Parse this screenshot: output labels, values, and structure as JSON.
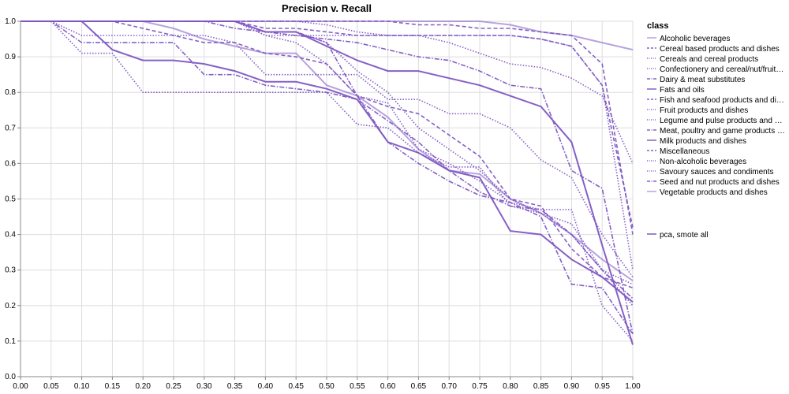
{
  "chart_data": {
    "type": "line",
    "title": "Precision v. Recall",
    "xlabel": "",
    "ylabel": "",
    "xlim": [
      0,
      1
    ],
    "ylim": [
      0,
      1
    ],
    "x_ticks": [
      "0.00",
      "0.05",
      "0.10",
      "0.15",
      "0.20",
      "0.25",
      "0.30",
      "0.35",
      "0.40",
      "0.45",
      "0.50",
      "0.55",
      "0.60",
      "0.65",
      "0.70",
      "0.75",
      "0.80",
      "0.85",
      "0.90",
      "0.95",
      "1.00"
    ],
    "y_ticks": [
      "0.0",
      "0.1",
      "0.2",
      "0.3",
      "0.4",
      "0.5",
      "0.6",
      "0.7",
      "0.8",
      "0.9",
      "1.0"
    ],
    "grid": true,
    "line_color": "#7e57c2",
    "legend": {
      "placement": "right",
      "title": "class",
      "classes": [
        "Alcoholic beverages",
        "Cereal based products and dishes",
        "Cereals and cereal products",
        "Confectionery and cereal/nut/fruit…",
        "Dairy & meat substitutes",
        "Fats and oils",
        "Fish and seafood products and di…",
        "Fruit products and dishes",
        "Legume and pulse products and …",
        "Meat, poultry and game products …",
        "Milk products and dishes",
        "Miscellaneous",
        "Non-alcoholic beverages",
        "Savoury sauces and condiments",
        "Seed and nut products and dishes",
        "Vegetable products and dishes"
      ],
      "model_label": "pca, smote all"
    },
    "series": [
      {
        "name": "Alcoholic beverages",
        "dash": "solid",
        "light": true,
        "x": [
          0,
          0.05,
          0.1,
          0.15,
          0.2,
          0.25,
          0.3,
          0.35,
          0.4,
          0.45,
          0.5,
          0.55,
          0.6,
          0.65,
          0.7,
          0.75,
          0.8,
          0.85,
          0.9,
          0.95,
          1.0
        ],
        "y": [
          1.0,
          1.0,
          1.0,
          1.0,
          1.0,
          1.0,
          1.0,
          1.0,
          1.0,
          1.0,
          1.0,
          1.0,
          1.0,
          1.0,
          1.0,
          1.0,
          0.99,
          0.97,
          0.96,
          0.94,
          0.92
        ]
      },
      {
        "name": "Cereal based products and dishes",
        "dash": "dashed",
        "light": false,
        "x": [
          0,
          0.05,
          0.1,
          0.15,
          0.2,
          0.25,
          0.3,
          0.35,
          0.4,
          0.45,
          0.5,
          0.55,
          0.6,
          0.65,
          0.7,
          0.75,
          0.8,
          0.85,
          0.9,
          0.95,
          1.0
        ],
        "y": [
          1.0,
          1.0,
          1.0,
          1.0,
          1.0,
          1.0,
          1.0,
          1.0,
          0.98,
          0.98,
          0.97,
          0.96,
          0.96,
          0.96,
          0.96,
          0.96,
          0.96,
          0.95,
          0.93,
          0.82,
          0.42
        ]
      },
      {
        "name": "Cereals and cereal products",
        "dash": "dotted",
        "light": false,
        "x": [
          0,
          0.05,
          0.1,
          0.15,
          0.2,
          0.25,
          0.3,
          0.35,
          0.4,
          0.45,
          0.5,
          0.55,
          0.6,
          0.65,
          0.7,
          0.75,
          0.8,
          0.85,
          0.9,
          0.95,
          1.0
        ],
        "y": [
          1.0,
          1.0,
          0.96,
          0.96,
          0.96,
          0.96,
          0.96,
          0.94,
          0.85,
          0.85,
          0.85,
          0.85,
          0.78,
          0.78,
          0.74,
          0.74,
          0.7,
          0.61,
          0.56,
          0.4,
          0.28
        ]
      },
      {
        "name": "Confectionery and cereal/nut/fruit…",
        "dash": "dotted",
        "light": false,
        "x": [
          0,
          0.05,
          0.1,
          0.15,
          0.2,
          0.25,
          0.3,
          0.35,
          0.4,
          0.45,
          0.5,
          0.55,
          0.6,
          0.65,
          0.7,
          0.75,
          0.8,
          0.85,
          0.9,
          0.95,
          1.0
        ],
        "y": [
          1.0,
          1.0,
          1.0,
          1.0,
          1.0,
          1.0,
          1.0,
          1.0,
          0.97,
          0.97,
          0.94,
          0.86,
          0.8,
          0.7,
          0.64,
          0.58,
          0.5,
          0.46,
          0.4,
          0.3,
          0.2
        ]
      },
      {
        "name": "Dairy & meat substitutes",
        "dash": "dashdot",
        "light": false,
        "x": [
          0,
          0.05,
          0.1,
          0.15,
          0.2,
          0.25,
          0.3,
          0.35,
          0.4,
          0.45,
          0.5,
          0.55,
          0.6,
          0.65,
          0.7,
          0.75,
          0.8,
          0.85,
          0.9,
          0.95,
          1.0
        ],
        "y": [
          1.0,
          1.0,
          0.94,
          0.94,
          0.94,
          0.94,
          0.85,
          0.85,
          0.82,
          0.81,
          0.8,
          0.78,
          0.72,
          0.66,
          0.58,
          0.52,
          0.48,
          0.47,
          0.4,
          0.3,
          0.22
        ]
      },
      {
        "name": "Fats and oils",
        "dash": "solid",
        "light": false,
        "x": [
          0,
          0.05,
          0.1,
          0.15,
          0.2,
          0.25,
          0.3,
          0.35,
          0.4,
          0.45,
          0.5,
          0.55,
          0.6,
          0.65,
          0.7,
          0.75,
          0.8,
          0.85,
          0.9,
          0.95,
          1.0
        ],
        "y": [
          1.0,
          1.0,
          1.0,
          0.92,
          0.89,
          0.89,
          0.88,
          0.86,
          0.83,
          0.83,
          0.81,
          0.78,
          0.66,
          0.63,
          0.58,
          0.56,
          0.41,
          0.4,
          0.33,
          0.28,
          0.21
        ]
      },
      {
        "name": "Fish and seafood products and di…",
        "dash": "dashed",
        "light": false,
        "x": [
          0,
          0.05,
          0.1,
          0.15,
          0.2,
          0.25,
          0.3,
          0.35,
          0.4,
          0.45,
          0.5,
          0.55,
          0.6,
          0.65,
          0.7,
          0.75,
          0.8,
          0.85,
          0.9,
          0.95,
          1.0
        ],
        "y": [
          1.0,
          1.0,
          1.0,
          1.0,
          0.98,
          0.96,
          0.94,
          0.94,
          0.91,
          0.9,
          0.88,
          0.79,
          0.76,
          0.74,
          0.68,
          0.62,
          0.5,
          0.48,
          0.36,
          0.28,
          0.25
        ]
      },
      {
        "name": "Fruit products and dishes",
        "dash": "dotted",
        "light": false,
        "x": [
          0,
          0.05,
          0.1,
          0.15,
          0.2,
          0.25,
          0.3,
          0.35,
          0.4,
          0.45,
          0.5,
          0.55,
          0.6,
          0.65,
          0.7,
          0.75,
          0.8,
          0.85,
          0.9,
          0.95,
          1.0
        ],
        "y": [
          1.0,
          1.0,
          1.0,
          1.0,
          1.0,
          1.0,
          1.0,
          1.0,
          1.0,
          1.0,
          0.99,
          0.97,
          0.96,
          0.96,
          0.94,
          0.91,
          0.88,
          0.87,
          0.84,
          0.79,
          0.6
        ]
      },
      {
        "name": "Legume and pulse products and …",
        "dash": "dotted",
        "light": false,
        "x": [
          0,
          0.05,
          0.1,
          0.15,
          0.2,
          0.25,
          0.3,
          0.35,
          0.4,
          0.45,
          0.5,
          0.55,
          0.6,
          0.65,
          0.7,
          0.75,
          0.8,
          0.85,
          0.9,
          0.95,
          1.0
        ],
        "y": [
          1.0,
          1.0,
          0.91,
          0.91,
          0.8,
          0.8,
          0.8,
          0.8,
          0.8,
          0.8,
          0.8,
          0.71,
          0.7,
          0.63,
          0.59,
          0.59,
          0.48,
          0.46,
          0.43,
          0.3,
          0.26
        ]
      },
      {
        "name": "Meat, poultry and game products …",
        "dash": "dashdot",
        "light": false,
        "x": [
          0,
          0.05,
          0.1,
          0.15,
          0.2,
          0.25,
          0.3,
          0.35,
          0.4,
          0.45,
          0.5,
          0.55,
          0.6,
          0.65,
          0.7,
          0.75,
          0.8,
          0.85,
          0.9,
          0.95,
          1.0
        ],
        "y": [
          1.0,
          1.0,
          1.0,
          1.0,
          1.0,
          1.0,
          1.0,
          0.98,
          0.97,
          0.96,
          0.95,
          0.94,
          0.92,
          0.9,
          0.89,
          0.86,
          0.82,
          0.81,
          0.58,
          0.53,
          0.12
        ]
      },
      {
        "name": "Milk products and dishes",
        "dash": "solid",
        "light": false,
        "x": [
          0,
          0.05,
          0.1,
          0.15,
          0.2,
          0.25,
          0.3,
          0.35,
          0.4,
          0.45,
          0.5,
          0.55,
          0.6,
          0.65,
          0.7,
          0.75,
          0.8,
          0.85,
          0.9,
          0.95,
          1.0
        ],
        "y": [
          1.0,
          1.0,
          1.0,
          1.0,
          1.0,
          1.0,
          1.0,
          1.0,
          0.97,
          0.97,
          0.93,
          0.89,
          0.86,
          0.86,
          0.84,
          0.82,
          0.79,
          0.76,
          0.66,
          0.37,
          0.09
        ]
      },
      {
        "name": "Miscellaneous",
        "dash": "dashed",
        "light": false,
        "x": [
          0,
          0.05,
          0.1,
          0.15,
          0.2,
          0.25,
          0.3,
          0.35,
          0.4,
          0.45,
          0.5,
          0.55,
          0.6,
          0.65,
          0.7,
          0.75,
          0.8,
          0.85,
          0.9,
          0.95,
          1.0
        ],
        "y": [
          1.0,
          1.0,
          1.0,
          1.0,
          1.0,
          1.0,
          1.0,
          1.0,
          1.0,
          1.0,
          1.0,
          1.0,
          1.0,
          0.99,
          0.99,
          0.98,
          0.98,
          0.97,
          0.96,
          0.88,
          0.4
        ]
      },
      {
        "name": "Non-alcoholic beverages",
        "dash": "dotted",
        "light": false,
        "x": [
          0,
          0.05,
          0.1,
          0.15,
          0.2,
          0.25,
          0.3,
          0.35,
          0.4,
          0.45,
          0.5,
          0.55,
          0.6,
          0.65,
          0.7,
          0.75,
          0.8,
          0.85,
          0.9,
          0.95,
          1.0
        ],
        "y": [
          1.0,
          1.0,
          1.0,
          1.0,
          1.0,
          1.0,
          1.0,
          1.0,
          0.96,
          0.96,
          0.96,
          0.96,
          0.96,
          0.96,
          0.96,
          0.96,
          0.96,
          0.95,
          0.93,
          0.82,
          0.3
        ]
      },
      {
        "name": "Savoury sauces and condiments",
        "dash": "dotted",
        "light": false,
        "x": [
          0,
          0.05,
          0.1,
          0.15,
          0.2,
          0.25,
          0.3,
          0.35,
          0.4,
          0.45,
          0.5,
          0.55,
          0.6,
          0.65,
          0.7,
          0.75,
          0.8,
          0.85,
          0.9,
          0.95,
          1.0
        ],
        "y": [
          1.0,
          1.0,
          1.0,
          1.0,
          1.0,
          1.0,
          1.0,
          1.0,
          0.96,
          0.94,
          0.88,
          0.79,
          0.77,
          0.64,
          0.6,
          0.55,
          0.49,
          0.47,
          0.47,
          0.2,
          0.1
        ]
      },
      {
        "name": "Seed and nut products and dishes",
        "dash": "dashdot",
        "light": false,
        "x": [
          0,
          0.05,
          0.1,
          0.15,
          0.2,
          0.25,
          0.3,
          0.35,
          0.4,
          0.45,
          0.5,
          0.55,
          0.6,
          0.65,
          0.7,
          0.75,
          0.8,
          0.85,
          0.9,
          0.95,
          1.0
        ],
        "y": [
          1.0,
          1.0,
          1.0,
          1.0,
          1.0,
          1.0,
          1.0,
          1.0,
          0.97,
          0.97,
          0.94,
          0.79,
          0.66,
          0.6,
          0.55,
          0.51,
          0.49,
          0.45,
          0.26,
          0.25,
          0.12
        ]
      },
      {
        "name": "Vegetable products and dishes",
        "dash": "solid",
        "light": true,
        "x": [
          0,
          0.05,
          0.1,
          0.15,
          0.2,
          0.25,
          0.3,
          0.35,
          0.4,
          0.45,
          0.5,
          0.55,
          0.6,
          0.65,
          0.7,
          0.75,
          0.8,
          0.85,
          0.9,
          0.95,
          1.0
        ],
        "y": [
          1.0,
          1.0,
          1.0,
          1.0,
          1.0,
          0.98,
          0.95,
          0.93,
          0.91,
          0.91,
          0.82,
          0.79,
          0.73,
          0.64,
          0.58,
          0.57,
          0.5,
          0.46,
          0.4,
          0.33,
          0.27
        ]
      }
    ]
  }
}
